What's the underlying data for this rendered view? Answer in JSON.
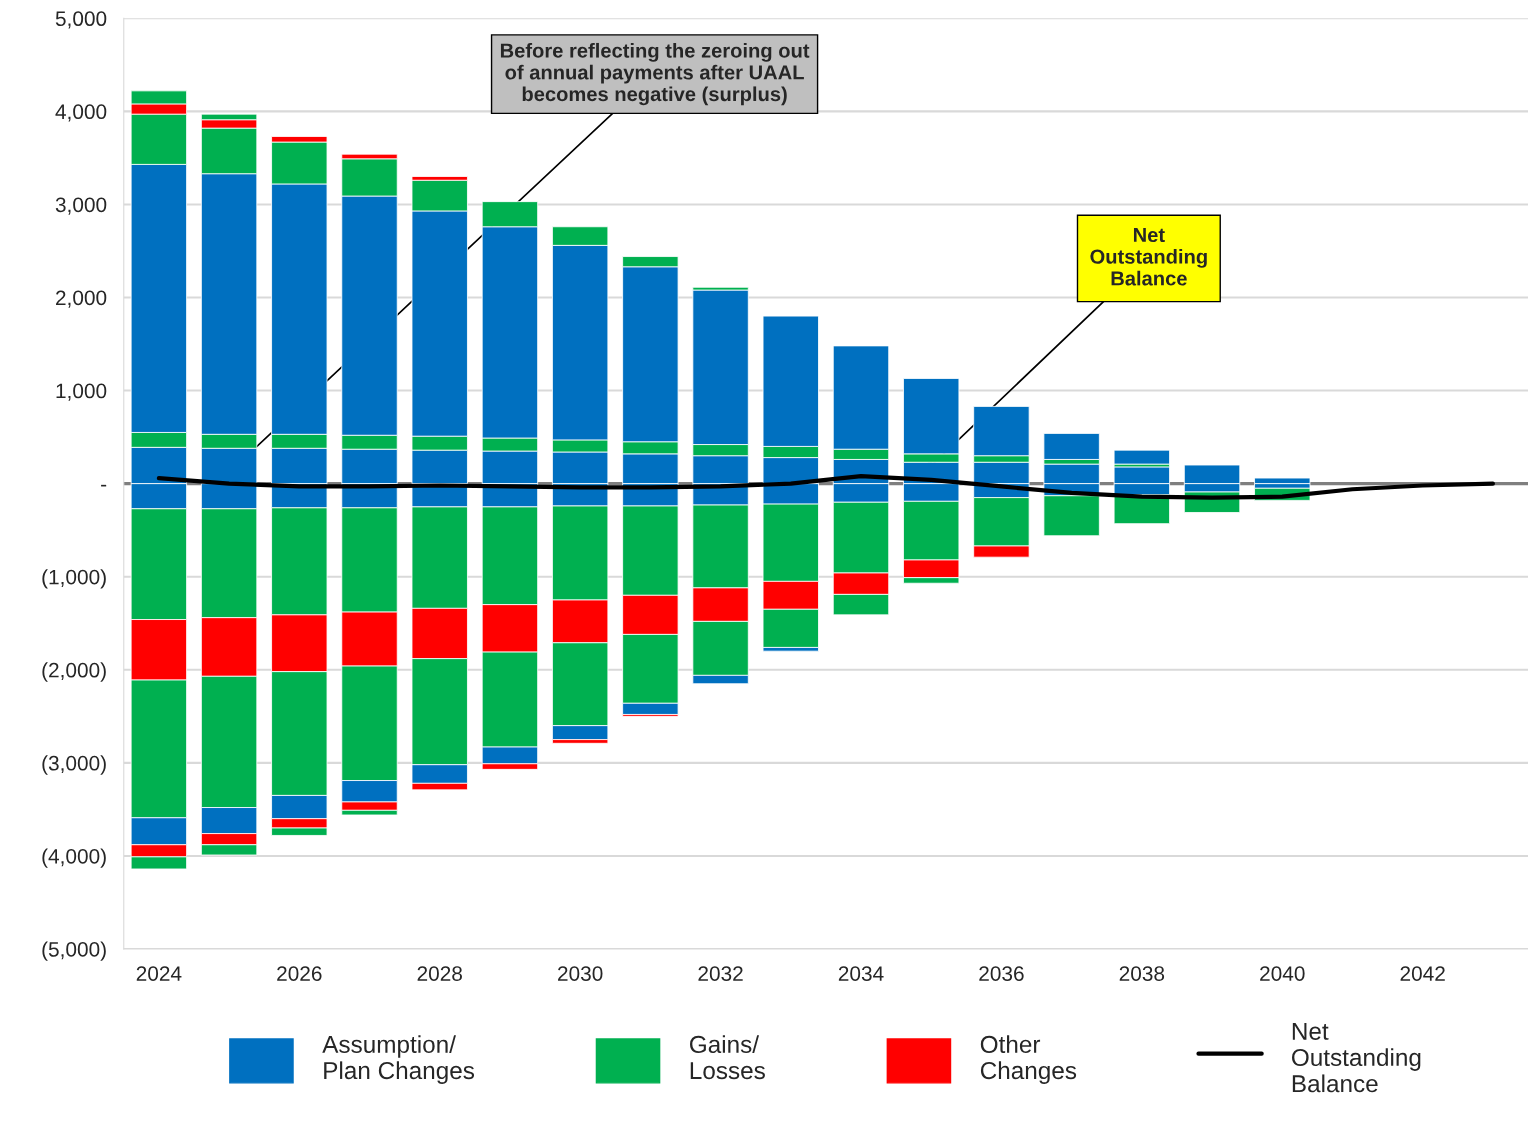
{
  "chart_data": {
    "type": "bar",
    "stacked": true,
    "x": [
      2024,
      2025,
      2026,
      2027,
      2028,
      2029,
      2030,
      2031,
      2032,
      2033,
      2034,
      2035,
      2036,
      2037,
      2038,
      2039,
      2040,
      2041,
      2042,
      2043
    ],
    "series": [
      {
        "name": "Assumption/ Plan Changes",
        "color": "#0070c0",
        "values": [
          390,
          380,
          380,
          370,
          360,
          350,
          340,
          320,
          300,
          280,
          260,
          230,
          230,
          210,
          180,
          200,
          60,
          null,
          null,
          null
        ]
      },
      {
        "color": "#00b050",
        "values": [
          160,
          150,
          150,
          150,
          150,
          140,
          130,
          130,
          120,
          120,
          110,
          90,
          70,
          50,
          30,
          null,
          null,
          null,
          null,
          null
        ]
      },
      {
        "color": "#0070c0",
        "values": [
          2880,
          2800,
          2690,
          2570,
          2420,
          2270,
          2090,
          1880,
          1660,
          1400,
          1110,
          810,
          530,
          280,
          150,
          null,
          null,
          null,
          null,
          null
        ]
      },
      {
        "color": "#00b050",
        "values": [
          540,
          490,
          450,
          400,
          330,
          270,
          200,
          110,
          30,
          null,
          null,
          null,
          null,
          null,
          null,
          null,
          null,
          null,
          null,
          null
        ]
      },
      {
        "color": "#ff0000",
        "values": [
          110,
          90,
          60,
          50,
          40,
          null,
          null,
          null,
          null,
          null,
          null,
          null,
          null,
          null,
          null,
          null,
          null,
          null,
          null,
          null
        ]
      },
      {
        "color": "#00b050",
        "values": [
          140,
          60,
          null,
          null,
          null,
          null,
          null,
          null,
          null,
          null,
          null,
          null,
          null,
          null,
          null,
          null,
          null,
          null,
          null,
          null
        ]
      },
      {
        "color": "#0070c0",
        "values": [
          -270,
          -270,
          -260,
          -260,
          -250,
          -250,
          -240,
          -240,
          -230,
          -220,
          -200,
          -190,
          -150,
          -130,
          -120,
          -90,
          -50,
          null,
          null,
          null
        ]
      },
      {
        "name": "Gains/ Losses",
        "color": "#00b050",
        "values": [
          -1190,
          -1170,
          -1150,
          -1120,
          -1090,
          -1050,
          -1010,
          -960,
          -890,
          -830,
          -760,
          -630,
          -520,
          -430,
          -310,
          -220,
          -130,
          null,
          null,
          null
        ]
      },
      {
        "name": "Other Changes",
        "color": "#ff0000",
        "values": [
          -650,
          -630,
          -610,
          -580,
          -540,
          -510,
          -460,
          -420,
          -360,
          -300,
          -230,
          -190,
          -120,
          null,
          null,
          null,
          null,
          null,
          null,
          null
        ]
      },
      {
        "color": "#00b050",
        "values": [
          -1480,
          -1410,
          -1330,
          -1230,
          -1140,
          -1020,
          -890,
          -740,
          -580,
          -410,
          -220,
          -60,
          null,
          null,
          null,
          null,
          null,
          null,
          null,
          null
        ]
      },
      {
        "color": "#0070c0",
        "values": [
          -290,
          -280,
          -250,
          -230,
          -200,
          -180,
          -150,
          -120,
          -90,
          -40,
          null,
          null,
          null,
          null,
          null,
          null,
          null,
          null,
          null,
          null
        ]
      },
      {
        "color": "#ff0000",
        "values": [
          -130,
          -120,
          -100,
          -90,
          -70,
          -60,
          -40,
          -20,
          null,
          null,
          null,
          null,
          null,
          null,
          null,
          null,
          null,
          null,
          null,
          null
        ]
      },
      {
        "color": "#00b050",
        "values": [
          -130,
          -110,
          -80,
          -50,
          null,
          null,
          null,
          null,
          null,
          null,
          null,
          null,
          null,
          null,
          null,
          null,
          null,
          null,
          null,
          null
        ]
      },
      {
        "name": "Net Outstanding Balance",
        "type": "line",
        "color": "#000000",
        "values": [
          60,
          0,
          -30,
          -30,
          -20,
          -30,
          -40,
          -40,
          -30,
          0,
          80,
          40,
          -30,
          -100,
          -140,
          -150,
          -140,
          -60,
          -20,
          0
        ]
      }
    ],
    "xlim": [
      2023.5,
      2043.5
    ],
    "xticks": [
      2024,
      2026,
      2028,
      2030,
      2032,
      2034,
      2036,
      2038,
      2040,
      2042
    ],
    "ylim": [
      -5000,
      5000
    ],
    "yticks": [
      {
        "value": -5000,
        "label": "(5,000)"
      },
      {
        "value": -4000,
        "label": "(4,000)"
      },
      {
        "value": -3000,
        "label": "(3,000)"
      },
      {
        "value": -2000,
        "label": "(2,000)"
      },
      {
        "value": -1000,
        "label": "(1,000)"
      },
      {
        "value": 0,
        "label": "-"
      },
      {
        "value": 1000,
        "label": "1,000"
      },
      {
        "value": 2000,
        "label": "2,000"
      },
      {
        "value": 3000,
        "label": "3,000"
      },
      {
        "value": 4000,
        "label": "4,000"
      },
      {
        "value": 5000,
        "label": "5,000"
      }
    ],
    "grid": "y",
    "legend": "bottom",
    "line_style": "solid",
    "marker": "none",
    "ref_lines": [
      {
        "axis": "y",
        "value": 0,
        "color": "#7f7f7f"
      }
    ],
    "annotations": [
      "Before reflecting the zeroing out\nof annual payments after UAAL\nbecomes negative (surplus)",
      "Net\nOutstanding\nBalance"
    ]
  }
}
